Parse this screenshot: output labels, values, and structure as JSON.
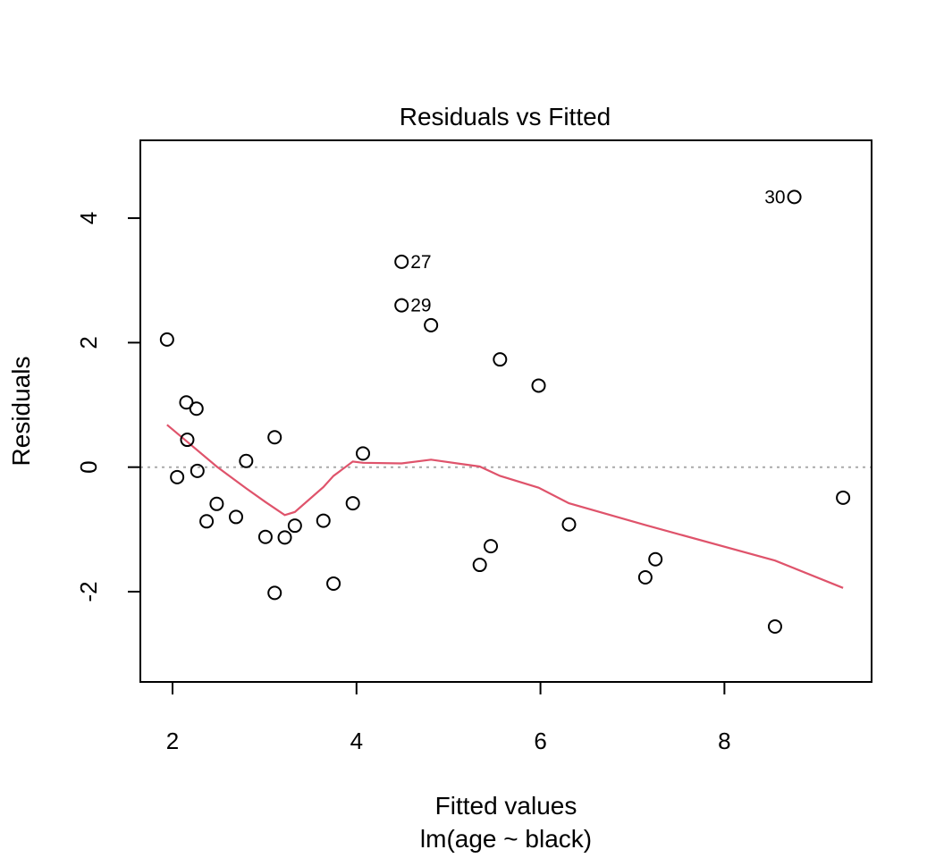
{
  "chart_data": {
    "type": "scatter",
    "title": "Residuals vs Fitted",
    "xlabel": "Fitted values",
    "subtitle": "lm(age ~ black)",
    "ylabel": "Residuals",
    "xlim": [
      1.65,
      9.6
    ],
    "ylim": [
      -3.45,
      5.25
    ],
    "x_ticks": [
      {
        "value": 2,
        "label": "2"
      },
      {
        "value": 4,
        "label": "4"
      },
      {
        "value": 6,
        "label": "6"
      },
      {
        "value": 8,
        "label": "8"
      }
    ],
    "y_ticks": [
      {
        "value": -2,
        "label": "-2"
      },
      {
        "value": 0,
        "label": "0"
      },
      {
        "value": 2,
        "label": "2"
      },
      {
        "value": 4,
        "label": "4"
      }
    ],
    "reference_line": {
      "y": 0,
      "style": "dotted",
      "color": "#aaaaaa"
    },
    "points": [
      {
        "x": 1.94,
        "y": 2.05
      },
      {
        "x": 2.05,
        "y": -0.16
      },
      {
        "x": 2.15,
        "y": 1.04
      },
      {
        "x": 2.16,
        "y": 0.44
      },
      {
        "x": 2.26,
        "y": 0.94
      },
      {
        "x": 2.27,
        "y": -0.06
      },
      {
        "x": 2.37,
        "y": -0.87
      },
      {
        "x": 2.48,
        "y": -0.59
      },
      {
        "x": 2.69,
        "y": -0.8
      },
      {
        "x": 2.8,
        "y": 0.1
      },
      {
        "x": 3.01,
        "y": -1.12
      },
      {
        "x": 3.11,
        "y": 0.48
      },
      {
        "x": 3.11,
        "y": -2.02
      },
      {
        "x": 3.22,
        "y": -1.13
      },
      {
        "x": 3.33,
        "y": -0.94
      },
      {
        "x": 3.64,
        "y": -0.86
      },
      {
        "x": 3.75,
        "y": -1.87
      },
      {
        "x": 3.96,
        "y": -0.58
      },
      {
        "x": 4.07,
        "y": 0.22
      },
      {
        "x": 4.49,
        "y": 3.3,
        "label": "27"
      },
      {
        "x": 4.49,
        "y": 2.6,
        "label": "29"
      },
      {
        "x": 4.81,
        "y": 2.28
      },
      {
        "x": 5.34,
        "y": -1.57
      },
      {
        "x": 5.46,
        "y": -1.27
      },
      {
        "x": 5.56,
        "y": 1.73
      },
      {
        "x": 5.98,
        "y": 1.31
      },
      {
        "x": 6.31,
        "y": -0.92
      },
      {
        "x": 7.14,
        "y": -1.77
      },
      {
        "x": 7.25,
        "y": -1.48
      },
      {
        "x": 8.55,
        "y": -2.56
      },
      {
        "x": 8.76,
        "y": 4.34,
        "label": "30"
      },
      {
        "x": 9.29,
        "y": -0.49
      }
    ],
    "smooth_line": {
      "color": "#df536b",
      "points": [
        [
          1.94,
          0.68
        ],
        [
          2.15,
          0.42
        ],
        [
          2.48,
          0.01
        ],
        [
          2.8,
          -0.34
        ],
        [
          3.01,
          -0.56
        ],
        [
          3.22,
          -0.77
        ],
        [
          3.33,
          -0.72
        ],
        [
          3.64,
          -0.32
        ],
        [
          3.75,
          -0.14
        ],
        [
          3.96,
          0.09
        ],
        [
          4.07,
          0.07
        ],
        [
          4.49,
          0.06
        ],
        [
          4.81,
          0.12
        ],
        [
          5.34,
          0.01
        ],
        [
          5.56,
          -0.14
        ],
        [
          5.98,
          -0.33
        ],
        [
          6.31,
          -0.58
        ],
        [
          7.14,
          -0.93
        ],
        [
          8.55,
          -1.5
        ],
        [
          9.29,
          -1.94
        ]
      ]
    }
  }
}
